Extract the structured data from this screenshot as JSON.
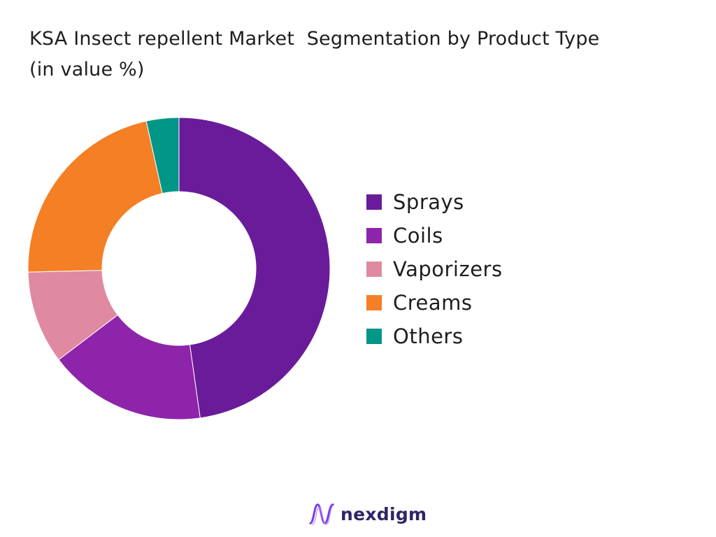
{
  "chart_data": {
    "type": "pie",
    "title": "KSA Insect repellent Market  Segmentation by Product Type\n(in value %)",
    "donut": true,
    "categories": [
      "Sprays",
      "Coils",
      "Vaporizers",
      "Creams",
      "Others"
    ],
    "values": [
      48,
      17,
      10,
      22,
      3.5
    ],
    "colors": [
      "#6a1b9a",
      "#8e24aa",
      "#df8aa0",
      "#f47f24",
      "#009688"
    ],
    "legend_position": "right"
  },
  "logo": {
    "text": "nexdigm",
    "icon": "nexdigm-wave-logo-icon",
    "color": "#2f2565",
    "accent": "#7b3fe4"
  }
}
